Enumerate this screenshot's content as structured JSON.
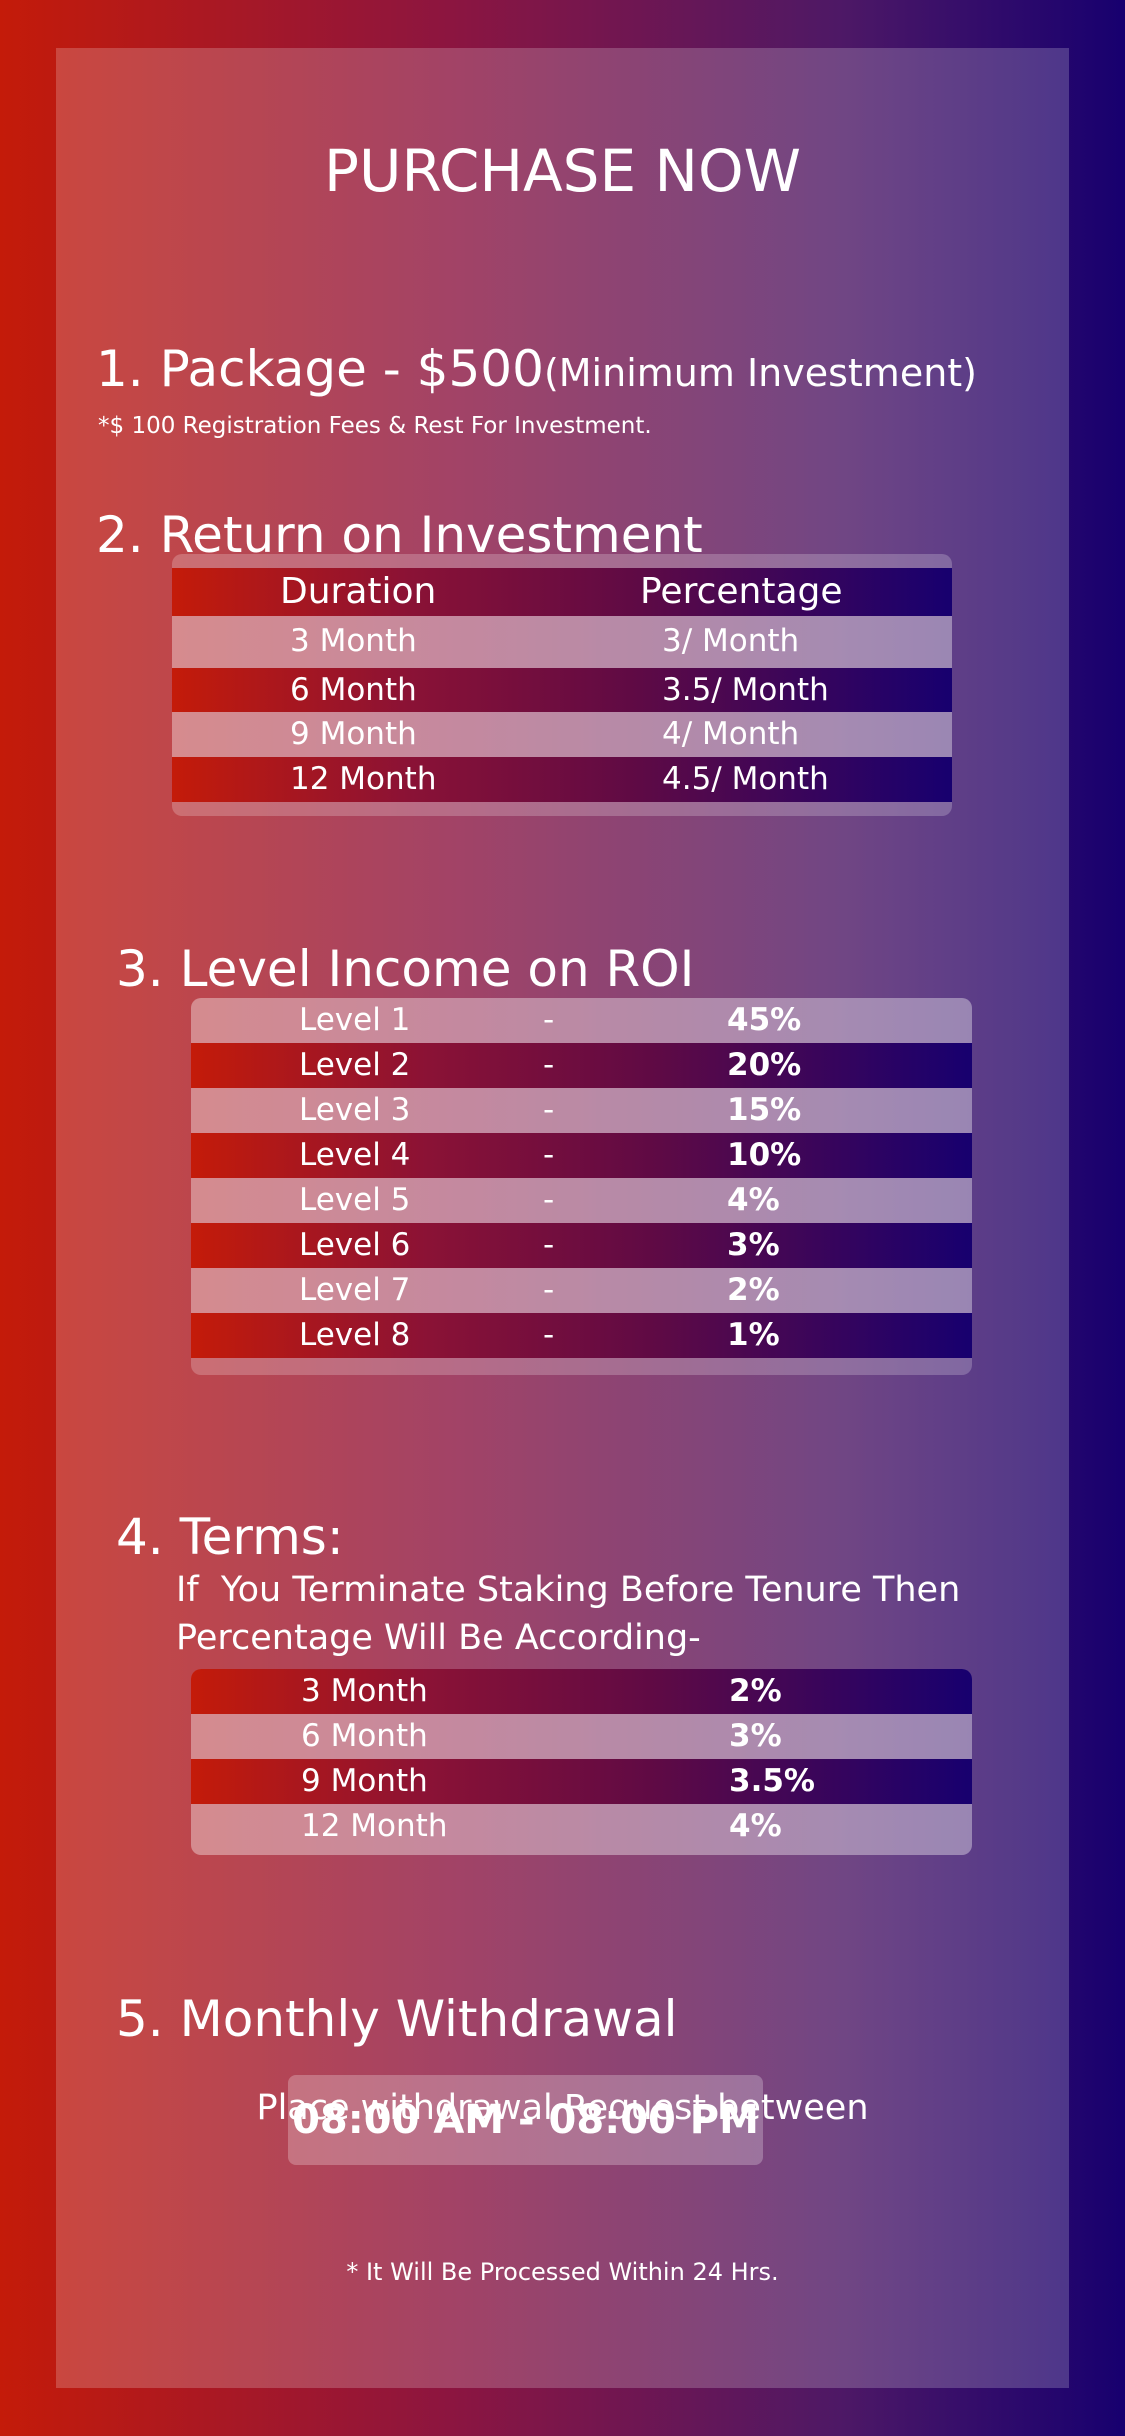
{
  "title": "PURCHASE NOW",
  "package": {
    "heading": "1. Package - $500",
    "heading_suffix": "(Minimum Investment)",
    "note": "*$ 100 Registration Fees & Rest For Investment."
  },
  "roi": {
    "heading": "2. Return on Investment",
    "col_duration": "Duration",
    "col_percentage": "Percentage",
    "rows": [
      {
        "duration": "3 Month",
        "percentage": "3/ Month"
      },
      {
        "duration": "6 Month",
        "percentage": "3.5/ Month"
      },
      {
        "duration": "9 Month",
        "percentage": "4/ Month"
      },
      {
        "duration": "12 Month",
        "percentage": "4.5/ Month"
      }
    ]
  },
  "level_income": {
    "heading": "3. Level Income on ROI",
    "rows": [
      {
        "level": "Level 1",
        "sep": "-",
        "pct": "45%"
      },
      {
        "level": "Level 2",
        "sep": "-",
        "pct": "20%"
      },
      {
        "level": "Level 3",
        "sep": "-",
        "pct": "15%"
      },
      {
        "level": "Level 4",
        "sep": "-",
        "pct": "10%"
      },
      {
        "level": "Level 5",
        "sep": "-",
        "pct": "4%"
      },
      {
        "level": "Level 6",
        "sep": "-",
        "pct": "3%"
      },
      {
        "level": "Level 7",
        "sep": "-",
        "pct": "2%"
      },
      {
        "level": "Level 8",
        "sep": "-",
        "pct": "1%"
      }
    ]
  },
  "terms": {
    "heading": "4. Terms:",
    "line1": "If  You Terminate Staking Before Tenure Then",
    "line2": "Percentage Will Be According-",
    "rows": [
      {
        "duration": "3 Month",
        "pct": "2%"
      },
      {
        "duration": "6 Month",
        "pct": "3%"
      },
      {
        "duration": "9 Month",
        "pct": "3.5%"
      },
      {
        "duration": "12 Month",
        "pct": "4%"
      }
    ]
  },
  "withdrawal": {
    "heading": "5. Monthly Withdrawal",
    "subtitle": "Place withdrawal Request between",
    "time": "08:00 AM - 08:00 PM",
    "note": "* It Will Be Processed Within 24 Hrs."
  }
}
